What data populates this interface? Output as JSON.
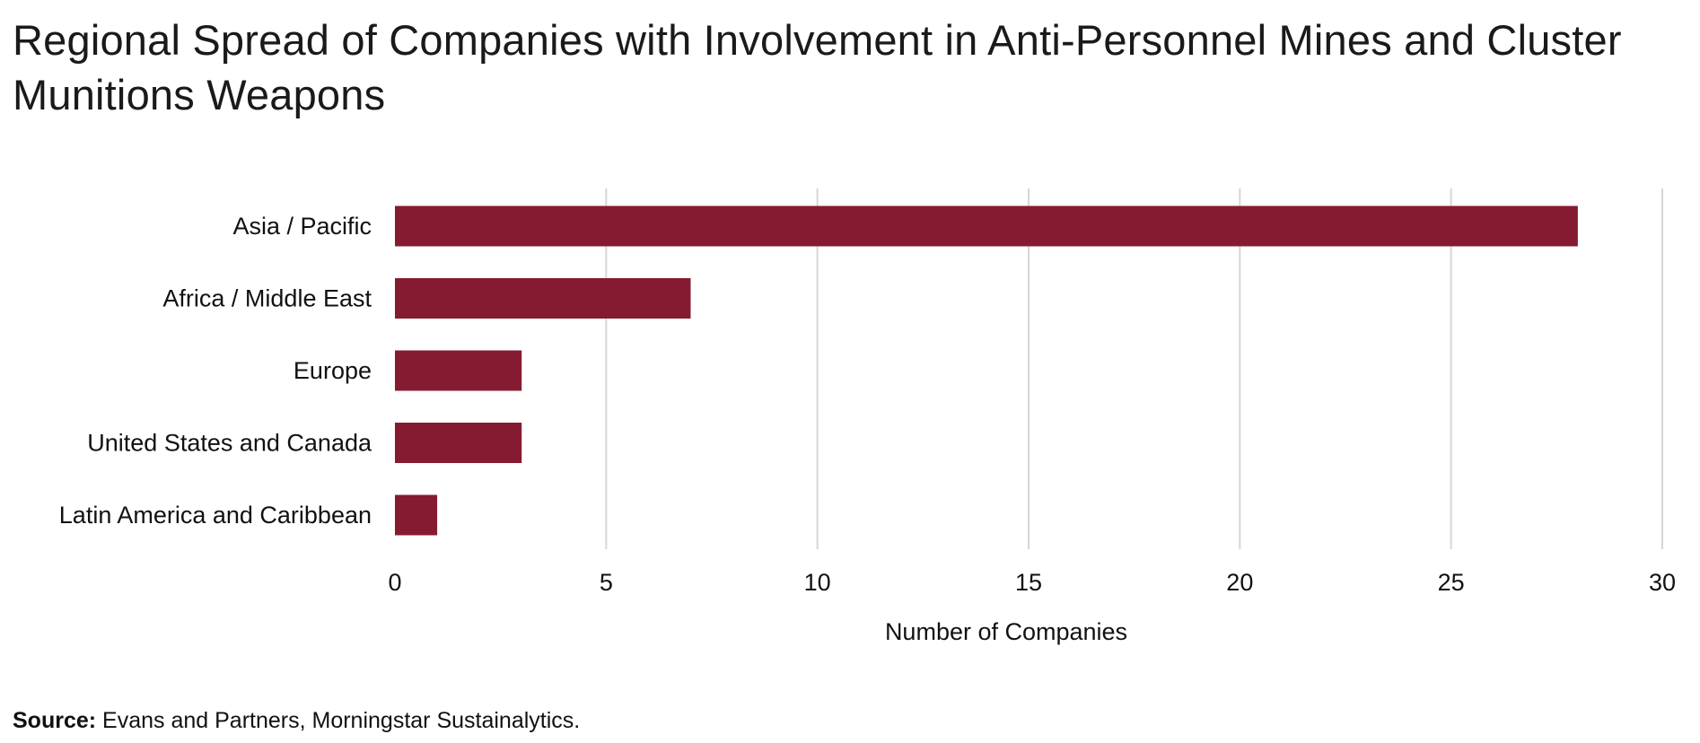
{
  "chart_data": {
    "type": "bar",
    "orientation": "horizontal",
    "title": "Regional Spread of Companies with Involvement in Anti-Personnel Mines and Cluster Munitions Weapons",
    "categories": [
      "Asia / Pacific",
      "Africa / Middle East",
      "Europe",
      "United States and Canada",
      "Latin America and Caribbean"
    ],
    "values": [
      28,
      7,
      3,
      3,
      1
    ],
    "xlabel": "Number of Companies",
    "ylabel": "",
    "xlim": [
      0,
      30
    ],
    "xticks": [
      0,
      5,
      10,
      15,
      20,
      25,
      30
    ],
    "xtick_labels": [
      "0",
      "5",
      "10",
      "15",
      "20",
      "25",
      "30"
    ],
    "grid": "vertical",
    "bar_color": "#851B30",
    "grid_color": "#D6D6D6"
  },
  "footer": {
    "source_label": "Source:",
    "source_text": " Evans and Partners, Morningstar Sustainalytics."
  }
}
